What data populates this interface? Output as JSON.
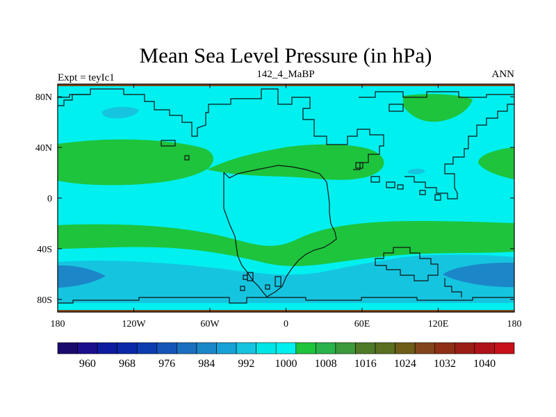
{
  "chart_data": {
    "type": "contour_map",
    "title": "Mean Sea Level Pressure (in hPa)",
    "left_label": "Expt = teyIc1",
    "center_label": "142_4_MaBP",
    "right_label": "ANN",
    "units": "hPa",
    "x_axis": {
      "range": [
        -180,
        180
      ],
      "ticks": [
        {
          "value": -180,
          "label": "180"
        },
        {
          "value": -120,
          "label": "120W"
        },
        {
          "value": -60,
          "label": "60W"
        },
        {
          "value": 0,
          "label": "0"
        },
        {
          "value": 60,
          "label": "60E"
        },
        {
          "value": 120,
          "label": "120E"
        },
        {
          "value": 180,
          "label": "180"
        }
      ]
    },
    "y_axis": {
      "range": [
        -90,
        90
      ],
      "ticks": [
        {
          "value": 80,
          "label": "80N"
        },
        {
          "value": 40,
          "label": "40N"
        },
        {
          "value": 0,
          "label": "0"
        },
        {
          "value": -40,
          "label": "40S"
        },
        {
          "value": -80,
          "label": "80S"
        }
      ]
    },
    "colorbar": {
      "levels": [
        956,
        960,
        964,
        968,
        972,
        976,
        980,
        984,
        988,
        992,
        996,
        1000,
        1004,
        1008,
        1012,
        1016,
        1020,
        1024,
        1028,
        1032,
        1036,
        1040,
        1044
      ],
      "labels": [
        "960",
        "968",
        "976",
        "984",
        "992",
        "1000",
        "1008",
        "1016",
        "1024",
        "1032",
        "1040"
      ],
      "colors": [
        "#1a0a6e",
        "#1c0f8e",
        "#0f1b9e",
        "#0a28a8",
        "#0d3cb0",
        "#1455b8",
        "#1a6fc0",
        "#1b87c8",
        "#16a2d6",
        "#15c5e0",
        "#00e6e6",
        "#00f0f0",
        "#1ec43c",
        "#2ab34a",
        "#3c9a3a",
        "#4f7a28",
        "#5a6f20",
        "#6e5d18",
        "#82451a",
        "#8e2f16",
        "#9a1e16",
        "#b0121a",
        "#c8101a"
      ]
    },
    "regions": [
      {
        "name": "background",
        "value": 1002,
        "color": "#00f0f0"
      },
      {
        "name": "north-polar-low",
        "value": 998,
        "color": "#15c5e0"
      },
      {
        "name": "north-atlantic-highs",
        "value": 1006,
        "color": "#1ec43c"
      },
      {
        "name": "north-pacific-high",
        "value": 1006,
        "color": "#1ec43c"
      },
      {
        "name": "southern-subtropical-high-belt",
        "value": 1006,
        "color": "#1ec43c"
      },
      {
        "name": "southern-ocean-trough",
        "value": 996,
        "color": "#15c5e0"
      },
      {
        "name": "southern-ocean-deep-low-west",
        "value": 986,
        "color": "#1b87c8"
      },
      {
        "name": "southern-ocean-deep-low-east",
        "value": 986,
        "color": "#1b87c8"
      },
      {
        "name": "north-polar-edge",
        "value": 1028,
        "color": "#82451a"
      },
      {
        "name": "south-polar-edge",
        "value": 1028,
        "color": "#82451a"
      }
    ]
  }
}
